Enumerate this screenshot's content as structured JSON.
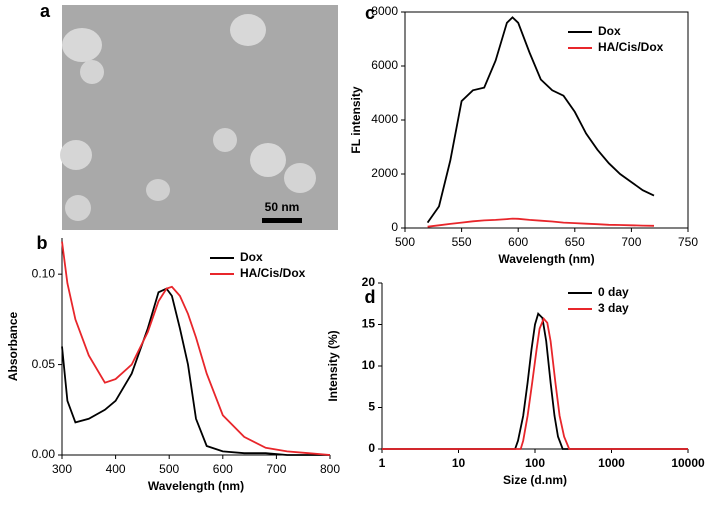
{
  "panel_a": {
    "label": "a",
    "scale_bar": "50 nm"
  },
  "chart_data": [
    {
      "type": "line",
      "panel_label": "b",
      "xlabel": "Wavelength (nm)",
      "ylabel": "Absorbance",
      "xlim": [
        300,
        800
      ],
      "ylim": [
        0,
        0.12
      ],
      "xticks": [
        300,
        400,
        500,
        600,
        700,
        800
      ],
      "yticks": [
        {
          "value": 0,
          "label": "0.00"
        },
        {
          "value": 0.05,
          "label": "0.05"
        },
        {
          "value": 0.1,
          "label": "0.10"
        }
      ],
      "legend": "upper right",
      "x": [
        300,
        310,
        325,
        350,
        380,
        400,
        430,
        460,
        480,
        495,
        505,
        520,
        535,
        550,
        570,
        600,
        640,
        680,
        720,
        760,
        800
      ],
      "series": [
        {
          "name": "Dox",
          "color": "#000000",
          "values": [
            0.06,
            0.03,
            0.018,
            0.02,
            0.025,
            0.03,
            0.045,
            0.07,
            0.09,
            0.092,
            0.088,
            0.07,
            0.05,
            0.02,
            0.005,
            0.002,
            0.001,
            0.001,
            0,
            0,
            0
          ]
        },
        {
          "name": "HA/Cis/Dox",
          "color": "#e8262b",
          "values": [
            0.118,
            0.095,
            0.075,
            0.055,
            0.04,
            0.042,
            0.05,
            0.068,
            0.085,
            0.092,
            0.093,
            0.088,
            0.078,
            0.065,
            0.045,
            0.022,
            0.01,
            0.004,
            0.002,
            0.001,
            0
          ]
        }
      ]
    },
    {
      "type": "line",
      "panel_label": "c",
      "xlabel": "Wavelength (nm)",
      "ylabel": "FL intensity",
      "xlim": [
        500,
        750
      ],
      "ylim": [
        0,
        8000
      ],
      "xticks": [
        500,
        550,
        600,
        650,
        700,
        750
      ],
      "yticks": [
        0,
        2000,
        4000,
        6000,
        8000
      ],
      "legend": "upper right",
      "x": [
        520,
        530,
        540,
        550,
        560,
        570,
        580,
        590,
        595,
        600,
        610,
        620,
        630,
        640,
        650,
        660,
        670,
        680,
        690,
        700,
        710,
        720
      ],
      "series": [
        {
          "name": "Dox",
          "color": "#000000",
          "values": [
            200,
            800,
            2500,
            4700,
            5100,
            5200,
            6200,
            7600,
            7800,
            7600,
            6500,
            5500,
            5100,
            4900,
            4300,
            3500,
            2900,
            2400,
            2000,
            1700,
            1400,
            1200
          ]
        },
        {
          "name": "HA/Cis/Dox",
          "color": "#e8262b",
          "values": [
            50,
            100,
            150,
            200,
            250,
            280,
            300,
            330,
            350,
            340,
            300,
            270,
            240,
            200,
            180,
            160,
            140,
            120,
            110,
            100,
            90,
            80
          ]
        }
      ]
    },
    {
      "type": "line",
      "panel_label": "d",
      "xlabel": "Size (d.nm)",
      "ylabel": "Intensity (%)",
      "xlim": [
        1,
        10000
      ],
      "ylim": [
        0,
        20
      ],
      "xlog": true,
      "xticks": [
        1,
        10,
        100,
        1000,
        10000
      ],
      "yticks": [
        0,
        5,
        10,
        15,
        20
      ],
      "legend": "upper right",
      "series": [
        {
          "name": "0 day",
          "color": "#000000",
          "x": [
            1,
            55,
            60,
            70,
            80,
            90,
            100,
            110,
            125,
            140,
            160,
            180,
            200,
            230,
            10000
          ],
          "values": [
            0,
            0,
            1,
            4,
            8,
            12,
            15,
            16.3,
            15.8,
            13,
            8,
            4,
            1.5,
            0,
            0
          ]
        },
        {
          "name": "3 day",
          "color": "#e8262b",
          "x": [
            1,
            65,
            70,
            80,
            92,
            105,
            115,
            130,
            145,
            160,
            185,
            210,
            240,
            280,
            10000
          ],
          "values": [
            0,
            0,
            1,
            4,
            8,
            12,
            14.5,
            15.7,
            15.2,
            13,
            8,
            4,
            1.5,
            0,
            0
          ]
        }
      ]
    }
  ]
}
